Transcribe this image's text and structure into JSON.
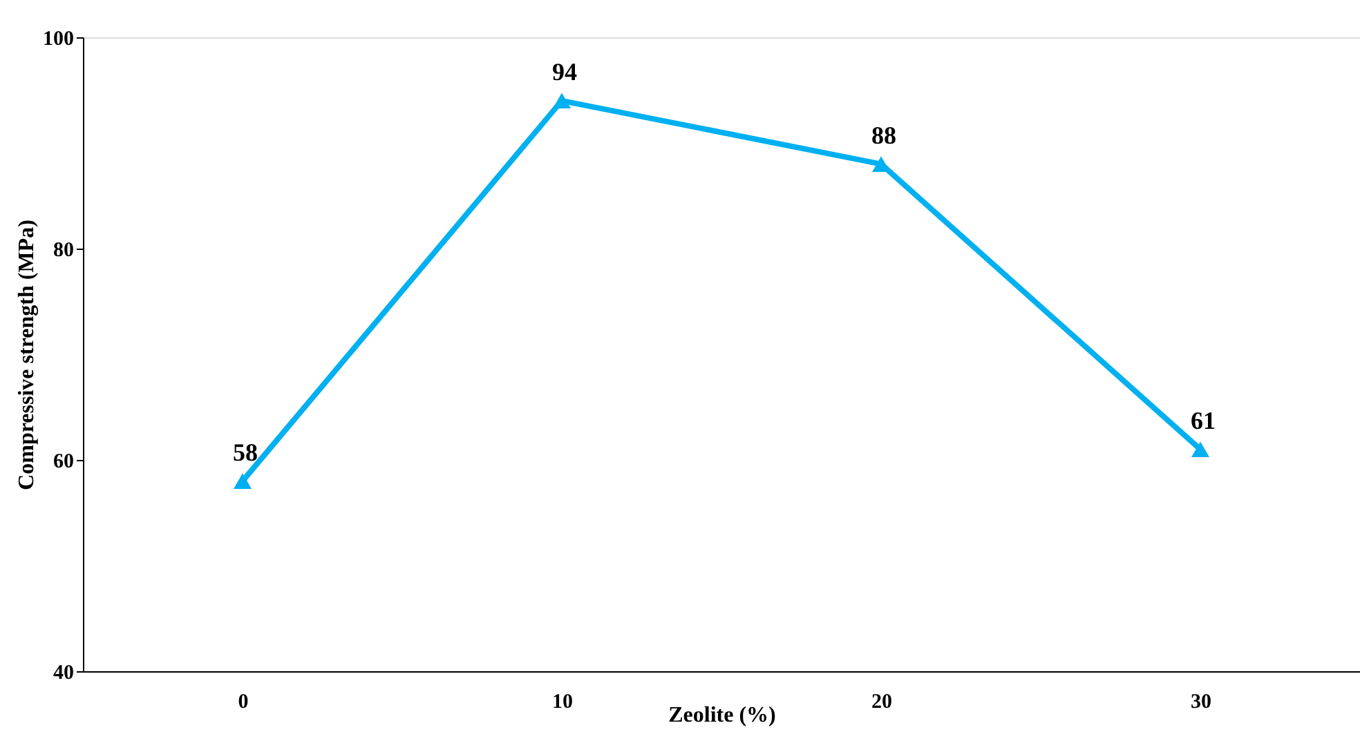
{
  "chart_data": {
    "type": "line",
    "xlabel": "Zeolite (%)",
    "ylabel": "Compressive strength (MPa)",
    "categories": [
      "0",
      "10",
      "20",
      "30"
    ],
    "series": [
      {
        "color": "#00b0f0",
        "values": [
          58,
          94,
          88,
          61
        ]
      }
    ],
    "marker": "triangle",
    "data_labels": true,
    "ylim": [
      40,
      100
    ],
    "yticks": [
      40,
      60,
      80,
      100
    ],
    "grid": false
  }
}
